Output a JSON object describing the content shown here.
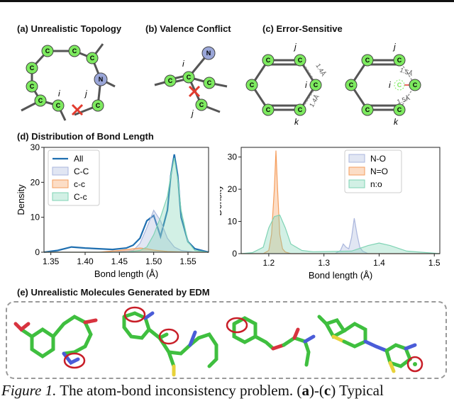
{
  "panels": {
    "a_title": "(a) Unrealistic Topology",
    "b_title": "(b) Valence Conflict",
    "c_title": "(c) Error-Sensitive",
    "d_title": "(d) Distribution of Bond Length",
    "e_title": "(e) Unrealistic Molecules Generated by EDM"
  },
  "atoms": {
    "carbon": "C",
    "nitrogen": "N"
  },
  "labels": {
    "i": "i",
    "j": "j",
    "k": "k",
    "bond_1_4": "1.4Å",
    "bond_1_5": "1.5Å"
  },
  "colors": {
    "carbon": "#7dea5f",
    "nitrogen": "#9aa6d8",
    "error_mark": "#e23b2e",
    "all": "#1f6fb0",
    "cc_single": "#aab6dd",
    "cc_lower": "#f59d5c",
    "cc_mixed": "#7fd3b4",
    "no_single": "#aab6dd",
    "no_double": "#f59d5c",
    "no_arom": "#7fd3b4"
  },
  "chart_data": [
    {
      "type": "area",
      "xlabel": "Bond length (Å)",
      "ylabel": "Density",
      "xlim": [
        1.34,
        1.58
      ],
      "ylim": [
        0,
        30
      ],
      "xticks": [
        "1.35",
        "1.40",
        "1.45",
        "1.50",
        "1.55"
      ],
      "yticks": [
        "0",
        "10",
        "20",
        "30"
      ],
      "legend": "top-left",
      "series": [
        {
          "name": "All",
          "x": [
            1.34,
            1.36,
            1.38,
            1.4,
            1.42,
            1.44,
            1.46,
            1.47,
            1.48,
            1.49,
            1.5,
            1.51,
            1.52,
            1.525,
            1.53,
            1.535,
            1.54,
            1.55,
            1.56,
            1.58
          ],
          "y": [
            0,
            0.5,
            1.5,
            1.2,
            1.0,
            0.8,
            1.2,
            2.0,
            4.0,
            9.0,
            10.5,
            4.5,
            12.0,
            22.0,
            28.0,
            22.0,
            10.0,
            3.0,
            1.0,
            0
          ]
        },
        {
          "name": "C-C",
          "x": [
            1.34,
            1.44,
            1.47,
            1.48,
            1.49,
            1.5,
            1.51,
            1.52,
            1.53,
            1.54,
            1.56,
            1.58
          ],
          "y": [
            0,
            0,
            0.5,
            2.5,
            7.0,
            12.0,
            9.0,
            4.0,
            1.5,
            0.5,
            0,
            0
          ]
        },
        {
          "name": "c-c",
          "x": [
            1.34,
            1.42,
            1.45,
            1.47,
            1.48,
            1.49,
            1.5,
            1.52,
            1.55,
            1.58
          ],
          "y": [
            0,
            0,
            0.5,
            1.0,
            1.2,
            1.0,
            0.6,
            0.2,
            0,
            0
          ]
        },
        {
          "name": "C-c",
          "x": [
            1.34,
            1.46,
            1.48,
            1.49,
            1.5,
            1.51,
            1.52,
            1.525,
            1.53,
            1.535,
            1.54,
            1.55,
            1.56,
            1.58
          ],
          "y": [
            0,
            0,
            0.5,
            1.5,
            5.0,
            10.0,
            16.0,
            22.0,
            27.0,
            21.0,
            12.0,
            3.0,
            0.5,
            0
          ]
        }
      ]
    },
    {
      "type": "area",
      "xlabel": "Bond length (Å)",
      "ylabel": "Density",
      "xlim": [
        1.15,
        1.51
      ],
      "ylim": [
        0,
        33
      ],
      "xticks": [
        "1.2",
        "1.3",
        "1.4",
        "1.5"
      ],
      "yticks": [
        "0",
        "10",
        "20",
        "30"
      ],
      "legend": "top-right",
      "series": [
        {
          "name": "N-O",
          "x": [
            1.15,
            1.32,
            1.33,
            1.335,
            1.34,
            1.345,
            1.35,
            1.355,
            1.36,
            1.365,
            1.37,
            1.38,
            1.51
          ],
          "y": [
            0,
            0,
            1.0,
            3.0,
            2.0,
            1.5,
            5.0,
            11.0,
            6.0,
            2.0,
            0.8,
            0,
            0
          ]
        },
        {
          "name": "N=O",
          "x": [
            1.15,
            1.19,
            1.2,
            1.205,
            1.21,
            1.213,
            1.216,
            1.22,
            1.225,
            1.23,
            1.24,
            1.51
          ],
          "y": [
            0,
            0,
            1.0,
            6.0,
            20.0,
            32.0,
            20.0,
            6.0,
            1.5,
            0.5,
            0,
            0
          ]
        },
        {
          "name": "n:o",
          "x": [
            1.15,
            1.17,
            1.19,
            1.2,
            1.21,
            1.22,
            1.23,
            1.24,
            1.26,
            1.28,
            1.35,
            1.38,
            1.4,
            1.42,
            1.45,
            1.51
          ],
          "y": [
            0,
            0.3,
            2.0,
            8.0,
            11.5,
            12.0,
            8.0,
            3.0,
            1.0,
            0.6,
            0.8,
            2.5,
            3.3,
            2.5,
            0.8,
            0
          ]
        }
      ]
    }
  ],
  "caption": {
    "figure_label": "Figure 1.",
    "text": " The atom-bond inconsistency problem. (",
    "a": "a",
    "dash": ")-(",
    "c": "c",
    "tail": ") Typical"
  }
}
